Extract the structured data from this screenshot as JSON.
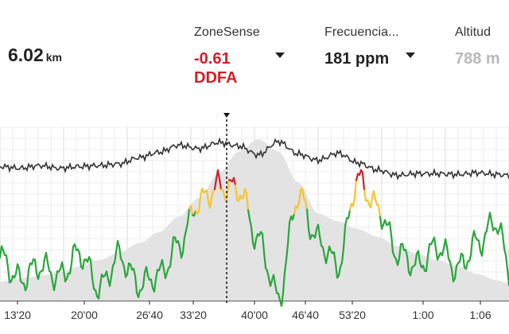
{
  "metrics": {
    "distance": {
      "value": "6.02",
      "unit": "km"
    },
    "zonesense": {
      "label": "ZoneSense",
      "value": "-0.61",
      "unit": "DDFA"
    },
    "heart_rate": {
      "label": "Frecuencia...",
      "value": "181 ppm"
    },
    "altitude": {
      "label": "Altitud",
      "value": "788 m"
    }
  },
  "colors": {
    "zonesense_value": "#d0202a",
    "heart_rate_line": "#333333",
    "ddfa_green": "#2aa63c",
    "ddfa_yellow": "#f5c431",
    "ddfa_red": "#d0202a",
    "altitude_fill": "#e3e3e3",
    "grid": "#dddddd"
  },
  "icons": [
    "chevron-down-icon"
  ],
  "chart_data": {
    "type": "line",
    "x_tick_labels": [
      "13'20",
      "20'00",
      "26'40",
      "33'20",
      "40'00",
      "46'40",
      "53'20",
      "1:00",
      "1:06"
    ],
    "x": [
      0,
      25,
      50,
      75,
      100,
      125,
      150,
      175,
      200,
      225,
      250,
      275,
      300,
      325,
      350,
      375,
      400,
      425,
      450,
      475,
      500,
      525,
      550,
      575,
      600,
      625,
      640
    ],
    "series": [
      {
        "name": "heart_rate",
        "values": [
          0.72,
          0.7,
          0.73,
          0.7,
          0.72,
          0.73,
          0.75,
          0.82,
          0.88,
          0.96,
          0.92,
          0.99,
          0.95,
          0.85,
          1.0,
          0.86,
          0.79,
          0.87,
          0.76,
          0.68,
          0.62,
          0.64,
          0.64,
          0.63,
          0.65,
          0.63,
          0.62
        ]
      },
      {
        "name": "ddfa",
        "values": [
          0.27,
          0.13,
          0.22,
          0.15,
          0.3,
          0.08,
          0.28,
          0.1,
          0.16,
          0.35,
          0.62,
          0.72,
          0.7,
          0.38,
          0.02,
          0.66,
          0.38,
          0.22,
          0.76,
          0.58,
          0.3,
          0.22,
          0.34,
          0.2,
          0.36,
          0.5,
          0.18
        ]
      },
      {
        "name": "altitude",
        "values": [
          0.08,
          0.1,
          0.12,
          0.14,
          0.18,
          0.22,
          0.27,
          0.33,
          0.4,
          0.5,
          0.62,
          0.78,
          0.92,
          1.0,
          0.92,
          0.72,
          0.52,
          0.47,
          0.42,
          0.37,
          0.31,
          0.26,
          0.22,
          0.18,
          0.13,
          0.09,
          0.07
        ]
      }
    ],
    "cursor_x": 285
  }
}
